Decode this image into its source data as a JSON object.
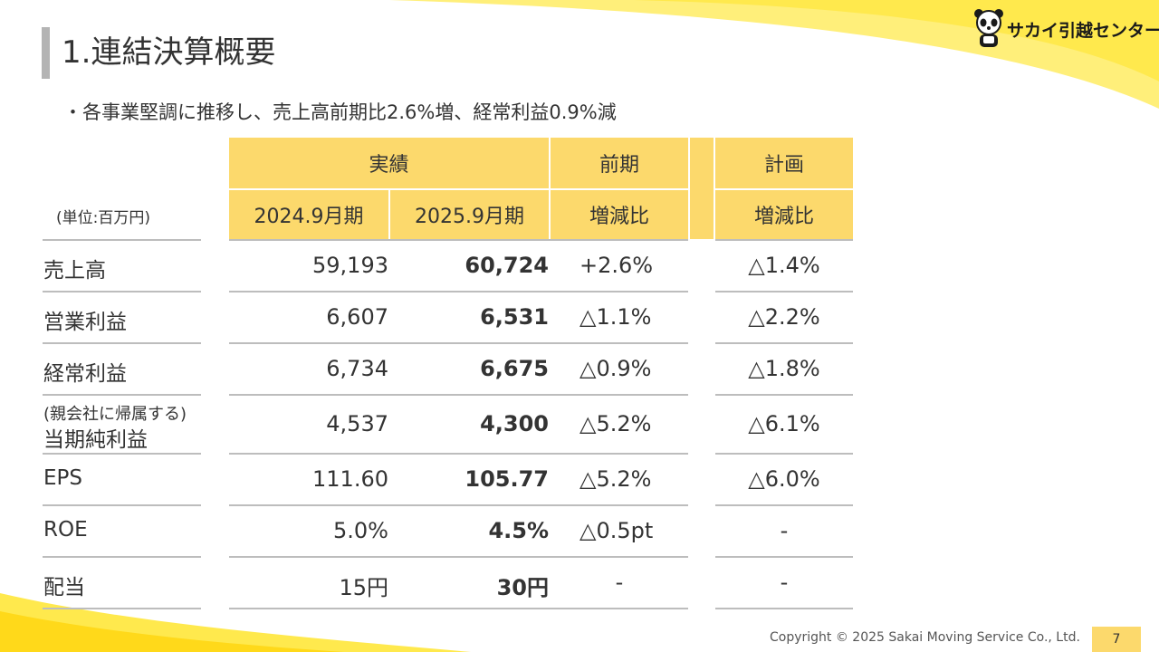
{
  "slide": {
    "title": "1.連結決算概要",
    "subtitle": "・各事業堅調に推移し、売上高前期比2.6%増、経常利益0.9%減",
    "logo_text": "サカイ引越センター",
    "copyright": "Copyright © 2025 Sakai Moving Service Co., Ltd.",
    "page_number": "7"
  },
  "colors": {
    "header_fill": "#fcd96c",
    "accent_yellow": "#ffe94d",
    "title_bar": "#b4b4b4",
    "rule": "#bdbdbd"
  },
  "table": {
    "unit_label": "(単位:百万円)",
    "group_headers": {
      "actual": "実績",
      "prev": "前期",
      "plan": "計画"
    },
    "sub_headers": {
      "fy2024": "2024.9月期",
      "fy2025": "2025.9月期",
      "prev_change": "増減比",
      "plan_change": "増減比"
    },
    "rows": [
      {
        "label": "売上高",
        "fy2024": "59,193",
        "fy2025": "60,724",
        "prev_change": "+2.6%",
        "plan_change": "△1.4%"
      },
      {
        "label": "営業利益",
        "fy2024": "6,607",
        "fy2025": "6,531",
        "prev_change": "△1.1%",
        "plan_change": "△2.2%"
      },
      {
        "label": "経常利益",
        "fy2024": "6,734",
        "fy2025": "6,675",
        "prev_change": "△0.9%",
        "plan_change": "△1.8%"
      },
      {
        "label_note": "(親会社に帰属する)",
        "label": "当期純利益",
        "fy2024": "4,537",
        "fy2025": "4,300",
        "prev_change": "△5.2%",
        "plan_change": "△6.1%"
      },
      {
        "label": "EPS",
        "fy2024": "111.60",
        "fy2025": "105.77",
        "prev_change": "△5.2%",
        "plan_change": "△6.0%"
      },
      {
        "label": "ROE",
        "fy2024": "5.0%",
        "fy2025": "4.5%",
        "prev_change": "△0.5pt",
        "plan_change": "-"
      },
      {
        "label": "配当",
        "fy2024": "15円",
        "fy2025": "30円",
        "prev_change": "-",
        "plan_change": "-"
      }
    ]
  }
}
